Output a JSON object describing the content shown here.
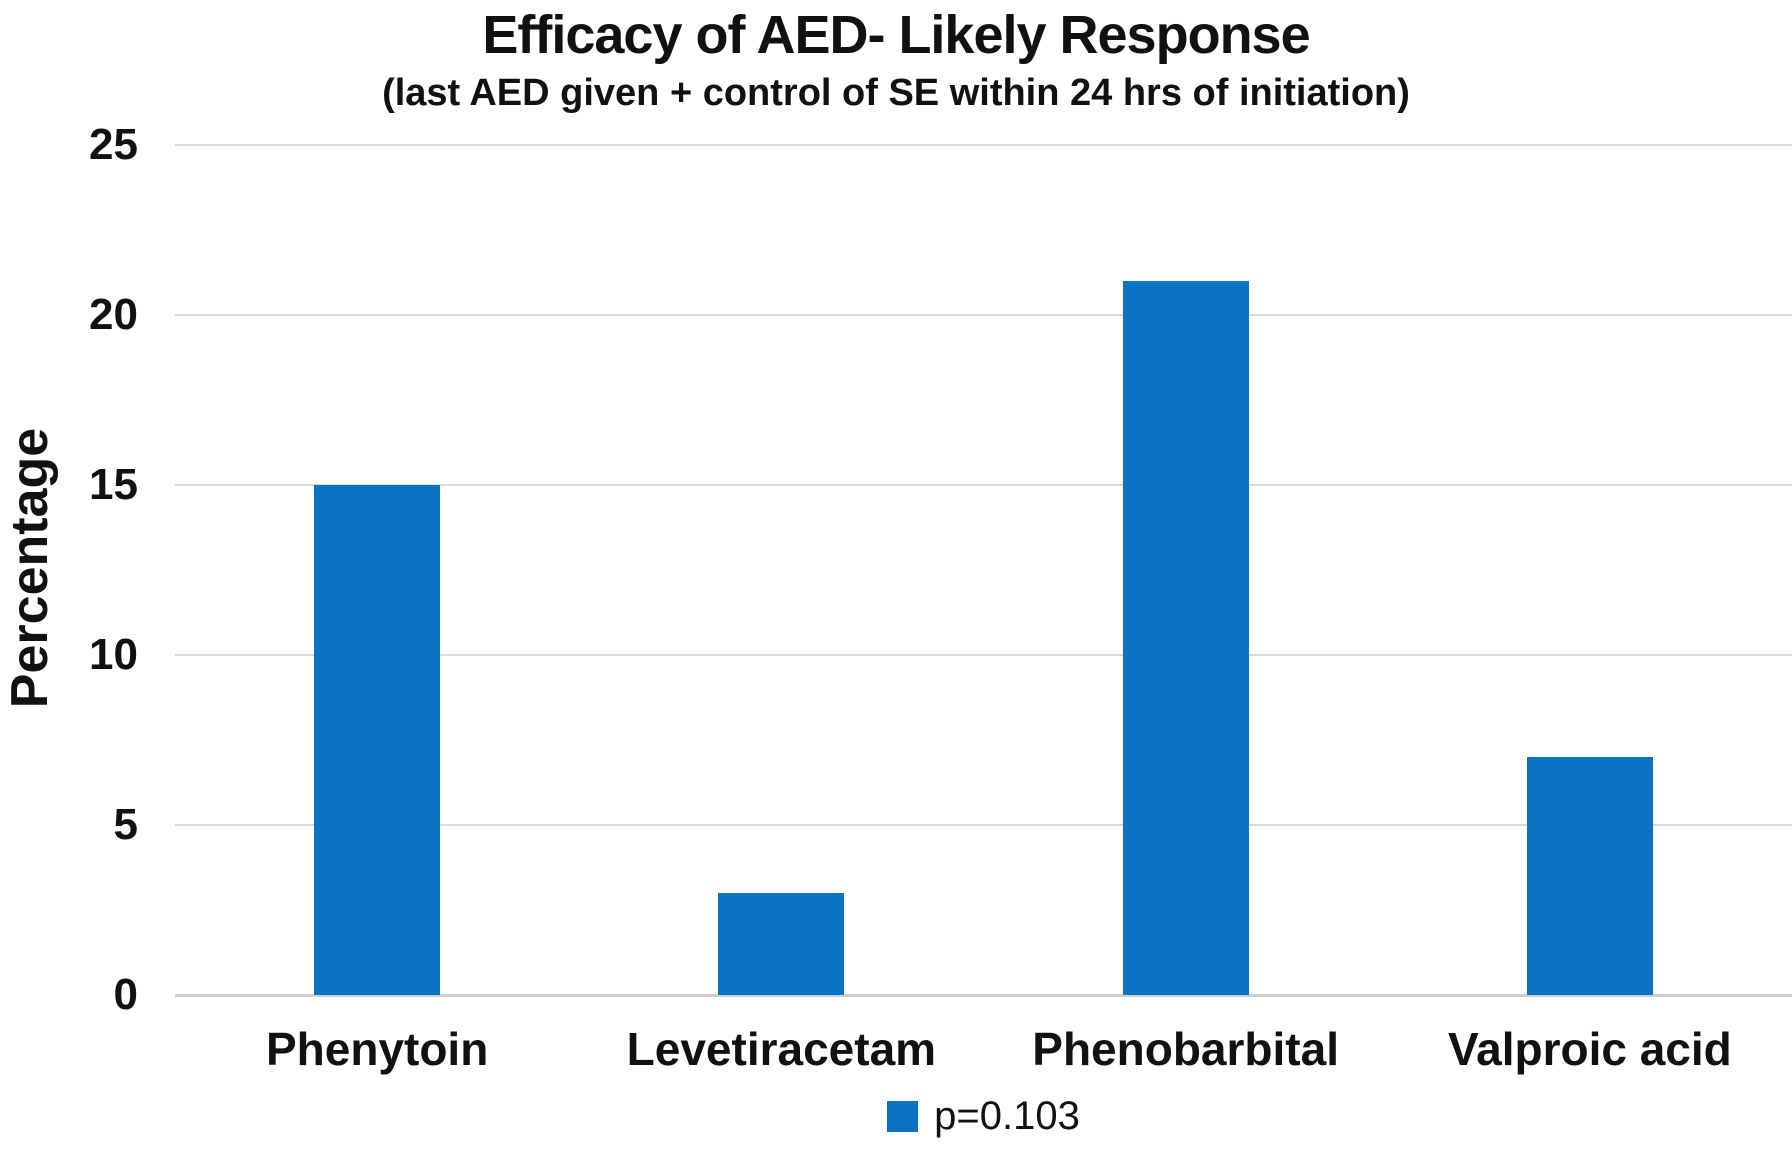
{
  "chart_data": {
    "type": "bar",
    "title": "Efficacy of AED- Likely Response",
    "subtitle": "(last AED given + control of SE within 24 hrs of initiation)",
    "ylabel": "Percentage",
    "xlabel": "",
    "categories": [
      "Phenytoin",
      "Levetiracetam",
      "Phenobarbital",
      "Valproic acid"
    ],
    "values": [
      15,
      3,
      21,
      7
    ],
    "yticks": [
      0,
      5,
      10,
      15,
      20,
      25
    ],
    "ylim": [
      0,
      25
    ],
    "grid": true,
    "legend": {
      "label": "p=0.103",
      "position": "bottom-center"
    },
    "colors": {
      "bar": "#0b74c2",
      "gridline": "#d9d9d9",
      "axis_line": "#cfcfcf",
      "text": "#111111",
      "background": "#ffffff"
    }
  }
}
